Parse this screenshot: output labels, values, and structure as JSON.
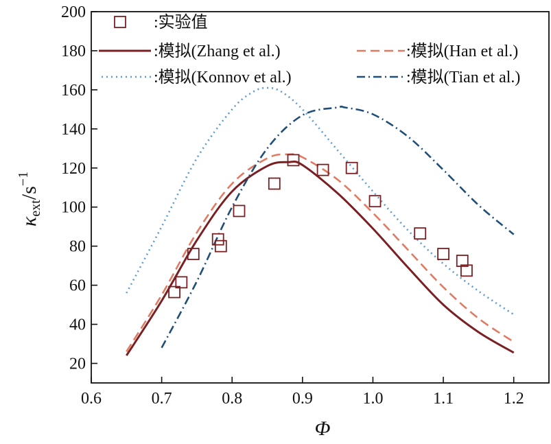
{
  "chart_data": {
    "type": "line",
    "xlabel": "Φ",
    "ylabel": {
      "symbol": "κ",
      "subscript": "ext",
      "unit": "s",
      "exponent": "−1",
      "slash": "/"
    },
    "xlim": [
      0.6,
      1.25
    ],
    "ylim": [
      10,
      200
    ],
    "xticks": [
      0.6,
      0.7,
      0.8,
      0.9,
      1.0,
      1.1,
      1.2
    ],
    "xtick_labels": [
      "0.6",
      "0.7",
      "0.8",
      "0.9",
      "1.0",
      "1.1",
      "1.2"
    ],
    "yticks": [
      20,
      40,
      60,
      80,
      100,
      120,
      140,
      160,
      180,
      200
    ],
    "ytick_labels": [
      "20",
      "40",
      "60",
      "80",
      "100",
      "120",
      "140",
      "160",
      "180",
      "200"
    ],
    "grid": false,
    "series": [
      {
        "name": "实验值",
        "legend_label": ":实验值",
        "kind": "markers",
        "marker": "square",
        "color": "#7a1f22",
        "x": [
          0.718,
          0.728,
          0.745,
          0.78,
          0.784,
          0.81,
          0.86,
          0.887,
          0.929,
          0.97,
          1.003,
          1.067,
          1.1,
          1.127,
          1.133
        ],
        "y": [
          56.5,
          61.5,
          76,
          83.5,
          80,
          98,
          112,
          124,
          119,
          120,
          103,
          86.5,
          76,
          72.5,
          67.5
        ]
      },
      {
        "name": "模拟(Zhang et al.)",
        "legend_label": ":模拟(Zhang et al.)",
        "kind": "line",
        "style": "solid",
        "color": "#7a1f22",
        "x": [
          0.65,
          0.7,
          0.75,
          0.8,
          0.85,
          0.88,
          0.9,
          0.95,
          1.0,
          1.05,
          1.1,
          1.15,
          1.2
        ],
        "y": [
          24,
          52,
          83,
          108,
          121,
          123,
          121.5,
          107,
          89,
          69,
          50,
          36,
          25.5
        ]
      },
      {
        "name": "模拟(Han et al.)",
        "legend_label": ":模拟(Han et al.)",
        "kind": "line",
        "style": "dashed",
        "color": "#e07b62",
        "x": [
          0.65,
          0.7,
          0.75,
          0.8,
          0.85,
          0.88,
          0.9,
          0.95,
          1.0,
          1.05,
          1.1,
          1.15,
          1.2
        ],
        "y": [
          26,
          55,
          87,
          112,
          125,
          127,
          125.5,
          114,
          97,
          78,
          59,
          43,
          31
        ]
      },
      {
        "name": "模拟(Konnov et al.)",
        "legend_label": ":模拟(Konnov et al.)",
        "kind": "line",
        "style": "dotted",
        "color": "#5b9bd5",
        "x": [
          0.65,
          0.7,
          0.75,
          0.8,
          0.83,
          0.85,
          0.87,
          0.9,
          0.95,
          1.0,
          1.05,
          1.1,
          1.15,
          1.2
        ],
        "y": [
          56,
          90,
          125,
          150,
          159,
          161,
          159,
          150,
          129,
          108,
          88,
          71,
          57,
          45
        ]
      },
      {
        "name": "模拟(Tian et al.)",
        "legend_label": ":模拟(Tian et al.)",
        "kind": "line",
        "style": "dashdot",
        "color": "#1f4e79",
        "x": [
          0.7,
          0.75,
          0.8,
          0.85,
          0.9,
          0.95,
          0.96,
          1.0,
          1.05,
          1.1,
          1.15,
          1.2
        ],
        "y": [
          28,
          62,
          100,
          130,
          147,
          151,
          151,
          147.5,
          136,
          119,
          101,
          86
        ]
      }
    ]
  }
}
